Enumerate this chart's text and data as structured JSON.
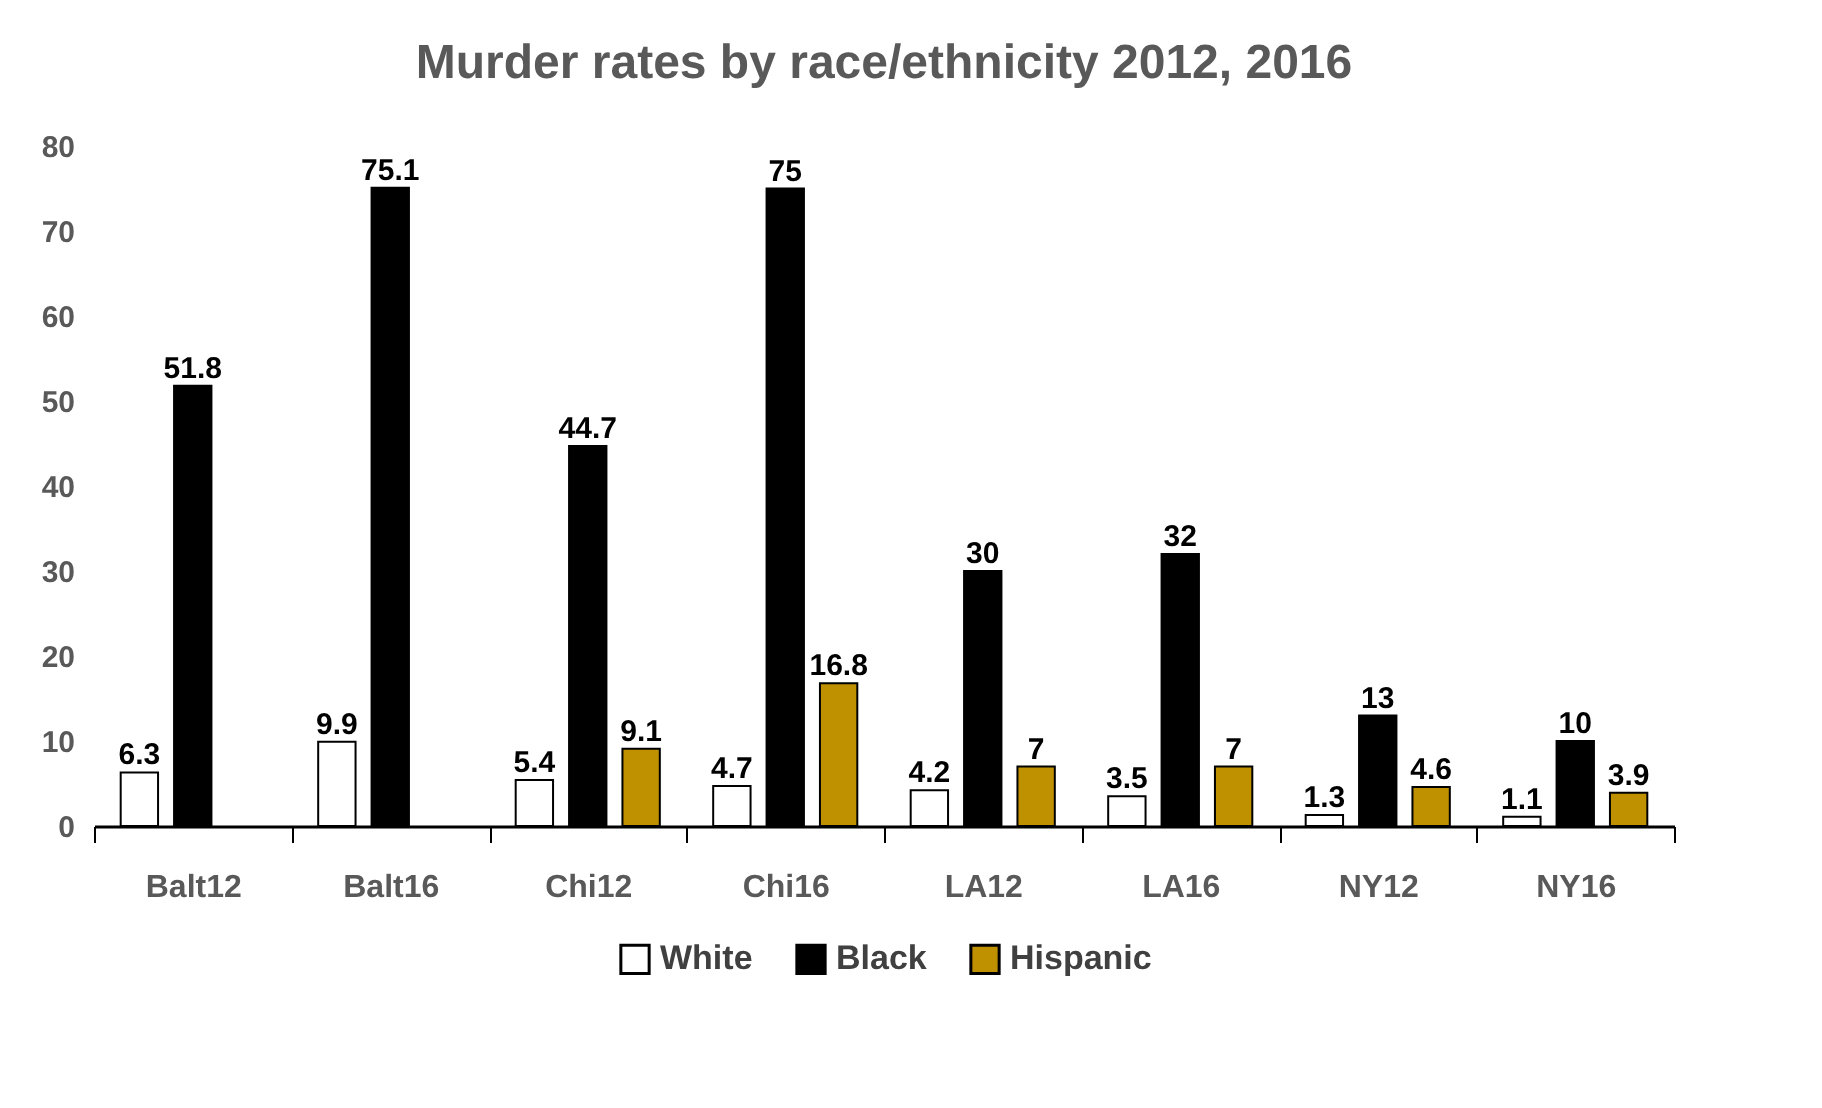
{
  "chart_data": {
    "type": "bar",
    "title": "Murder rates by race/ethnicity 2012, 2016",
    "categories": [
      "Balt12",
      "Balt16",
      "Chi12",
      "Chi16",
      "LA12",
      "LA16",
      "NY12",
      "NY16"
    ],
    "series": [
      {
        "name": "White",
        "color": "#ffffff",
        "values": [
          6.3,
          9.9,
          5.4,
          4.7,
          4.2,
          3.5,
          1.3,
          1.1
        ]
      },
      {
        "name": "Black",
        "color": "#000000",
        "values": [
          51.8,
          75.1,
          44.7,
          75,
          30,
          32,
          13,
          10
        ]
      },
      {
        "name": "Hispanic",
        "color": "#bf9000",
        "values": [
          null,
          null,
          9.1,
          16.8,
          7,
          7,
          4.6,
          3.9
        ]
      }
    ],
    "ylim": [
      0,
      80
    ],
    "yticks": [
      0,
      10,
      20,
      30,
      40,
      50,
      60,
      70,
      80
    ],
    "data_labels": true,
    "legend": "bottom",
    "grid": false
  }
}
